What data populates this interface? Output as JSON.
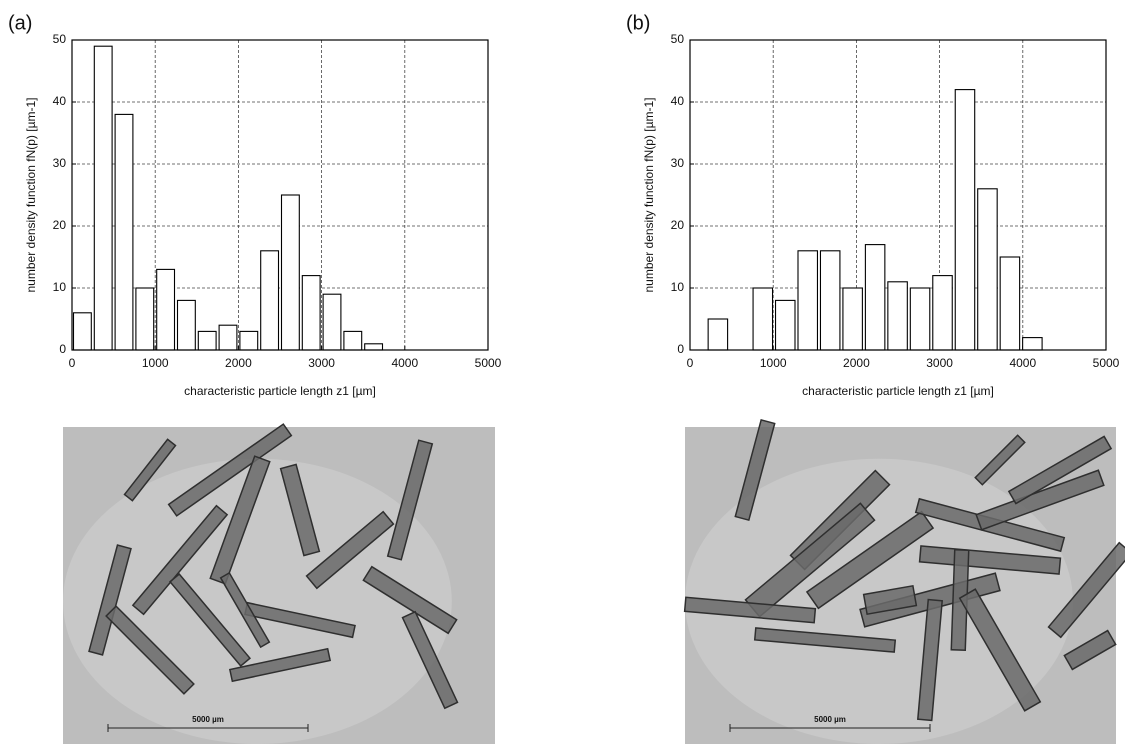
{
  "chart_data": [
    {
      "type": "histogram",
      "panel": "(a)",
      "xlabel": "characteristic particle length z1 [µm]",
      "ylabel": "number density function fN(p) [µm-1]",
      "bins": [
        0,
        250,
        500,
        750,
        1000,
        1250,
        1500,
        1750,
        2000,
        2250,
        2500,
        2750,
        3000,
        3250,
        3500,
        3750
      ],
      "values": [
        6,
        49,
        38,
        10,
        13,
        8,
        3,
        4,
        3,
        16,
        25,
        12,
        9,
        3,
        1
      ],
      "color": "#ffffff",
      "xlim": [
        0,
        5000
      ],
      "xticks": [
        0,
        1000,
        2000,
        3000,
        4000,
        5000
      ],
      "ylim": [
        0,
        50
      ],
      "yticks": [
        0,
        10,
        20,
        30,
        40,
        50
      ],
      "grid": true
    },
    {
      "type": "histogram",
      "panel": "(b)",
      "xlabel": "characteristic particle length z1 [µm]",
      "ylabel": "number density function fN(p) [µm-1]",
      "bins": [
        200,
        470,
        740,
        1010,
        1280,
        1550,
        1820,
        2090,
        2360,
        2630,
        2900,
        3170,
        3440,
        3710,
        3980,
        4250
      ],
      "values": [
        5,
        0,
        10,
        8,
        16,
        16,
        10,
        17,
        11,
        10,
        12,
        42,
        26,
        15,
        2
      ],
      "color": "#ffffff",
      "xlim": [
        0,
        5000
      ],
      "xticks": [
        0,
        1000,
        2000,
        3000,
        4000,
        5000
      ],
      "ylim": [
        0,
        50
      ],
      "yticks": [
        0,
        10,
        20,
        30,
        40,
        50
      ],
      "grid": true
    }
  ],
  "micrographs": [
    {
      "scale_bar": "5000 µm"
    },
    {
      "scale_bar": "5000 µm"
    }
  ]
}
